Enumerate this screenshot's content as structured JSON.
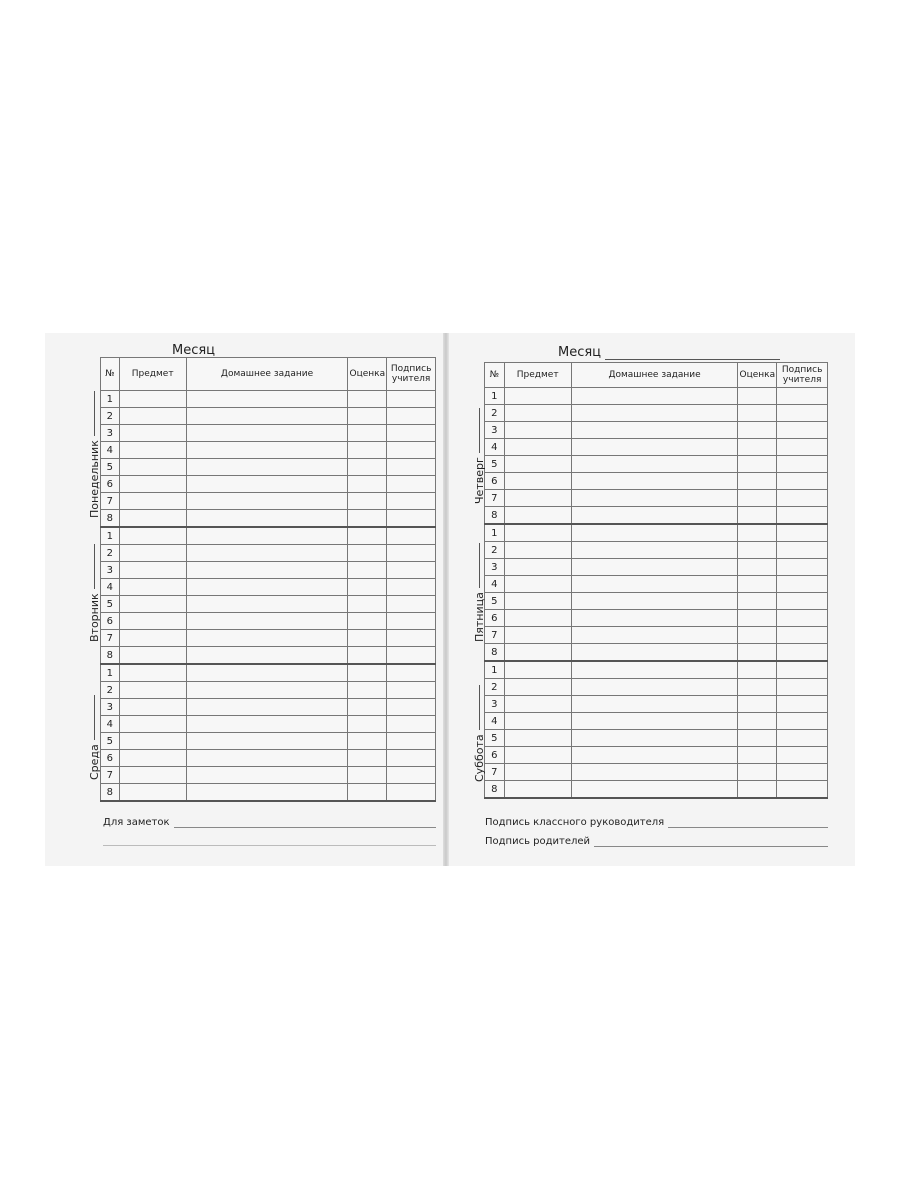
{
  "left_page": {
    "month_label": "Месяц",
    "headers": [
      "№",
      "Предмет",
      "Домашнее задание",
      "Оценка",
      "Подпись учителя"
    ],
    "days": [
      "Понедельник",
      "Вторник",
      "Среда"
    ],
    "notes_label": "Для заметок"
  },
  "right_page": {
    "month_label": "Месяц",
    "headers": [
      "№",
      "Предмет",
      "Домашнее задание",
      "Оценка",
      "Подпись учителя"
    ],
    "days": [
      "Четверг",
      "Пятница",
      "Суббота"
    ],
    "teacher_signature_label": "Подпись классного руководителя",
    "parents_signature_label": "Подпись родителей"
  },
  "lesson_numbers": [
    "1",
    "2",
    "3",
    "4",
    "5",
    "6",
    "7",
    "8"
  ]
}
